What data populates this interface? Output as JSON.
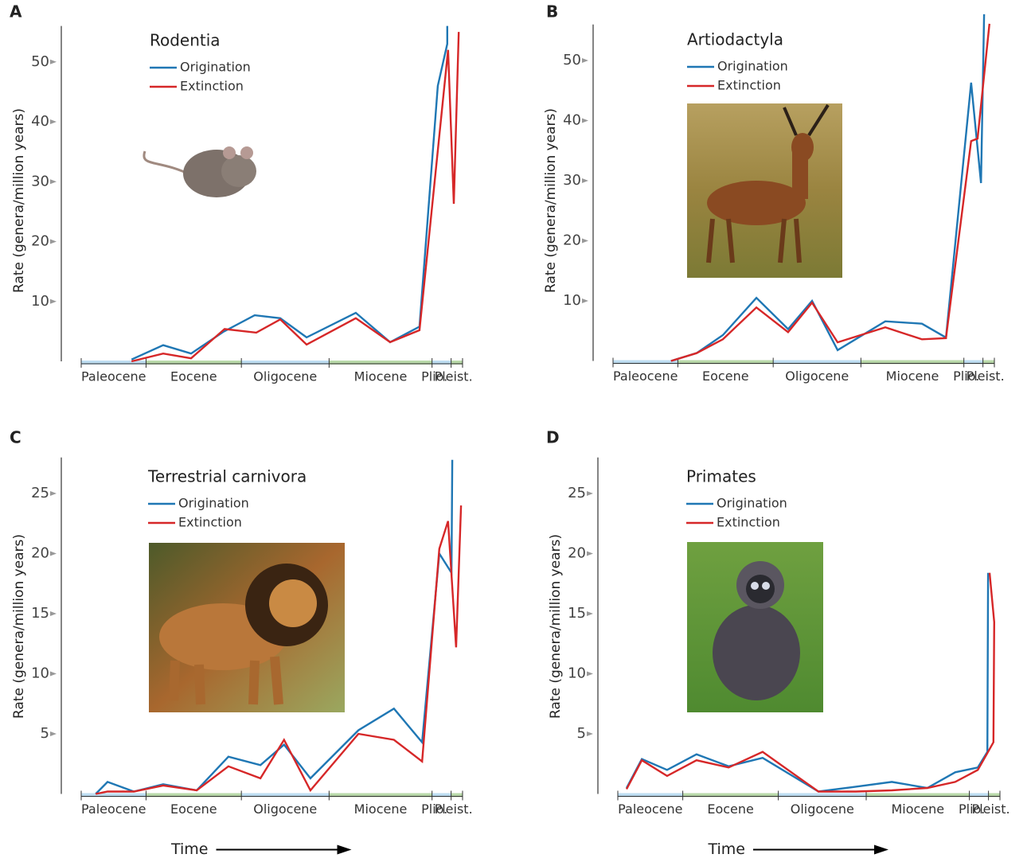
{
  "chart_data": [
    {
      "type": "line",
      "panel": "A",
      "title": "Rodentia",
      "ylabel": "Rate (genera/million years)",
      "xlim": [
        0,
        100
      ],
      "ylim": [
        0,
        56
      ],
      "yticks": [
        10,
        20,
        30,
        40,
        50
      ],
      "epochs": [
        {
          "name": "Paleocene",
          "start": 0,
          "end": 17
        },
        {
          "name": "Eocene",
          "start": 17,
          "end": 42
        },
        {
          "name": "Oligocene",
          "start": 42,
          "end": 65
        },
        {
          "name": "Miocene",
          "start": 65,
          "end": 92
        },
        {
          "name": "Plio.",
          "start": 92,
          "end": 97
        },
        {
          "name": "Pleist.",
          "start": 97,
          "end": 100
        }
      ],
      "series": [
        {
          "name": "Origination",
          "color": "#1f77b4",
          "x": [
            13.2,
            21.5,
            28.8,
            37.2,
            45.5,
            52.2,
            59.1,
            72.0,
            81.0,
            88.7,
            93.5,
            96.0,
            96.0
          ],
          "values": [
            0.3,
            2.7,
            1.3,
            4.9,
            7.7,
            7.2,
            4.0,
            8.1,
            3.2,
            5.8,
            46,
            53,
            56
          ]
        },
        {
          "name": "Extinction",
          "color": "#d62728",
          "x": [
            13.2,
            21.5,
            28.8,
            37.6,
            45.9,
            52.2,
            59.1,
            72.0,
            81.0,
            88.7,
            96.2,
            97.7,
            99.0
          ],
          "values": [
            0,
            1.3,
            0.5,
            5.4,
            4.8,
            7.0,
            2.8,
            7.2,
            3.2,
            5.2,
            52,
            26.3,
            55
          ]
        }
      ]
    },
    {
      "type": "line",
      "panel": "B",
      "title": "Artiodactyla",
      "ylabel": "Rate (genera/million years)",
      "xlim": [
        0,
        100
      ],
      "ylim": [
        0,
        56
      ],
      "yticks": [
        10,
        20,
        30,
        40,
        50
      ],
      "epochs": [
        {
          "name": "Paleocene",
          "start": 0,
          "end": 17
        },
        {
          "name": "Eocene",
          "start": 17,
          "end": 42
        },
        {
          "name": "Oligocene",
          "start": 42,
          "end": 65
        },
        {
          "name": "Miocene",
          "start": 65,
          "end": 92
        },
        {
          "name": "Plio.",
          "start": 92,
          "end": 97
        },
        {
          "name": "Pleist.",
          "start": 97,
          "end": 100
        }
      ],
      "series": [
        {
          "name": "Origination",
          "color": "#1f77b4",
          "x": [
            15.2,
            21.9,
            28.8,
            37.6,
            45.9,
            52.2,
            58.9,
            71.4,
            81.0,
            87.3,
            93.9,
            96.5,
            97.3
          ],
          "values": [
            0,
            1.3,
            4.3,
            10.5,
            5.3,
            10.0,
            1.8,
            6.6,
            6.2,
            3.9,
            46.3,
            29.6,
            57.7
          ]
        },
        {
          "name": "Extinction",
          "color": "#d62728",
          "x": [
            15.2,
            21.9,
            28.8,
            37.6,
            45.9,
            52.2,
            58.9,
            71.4,
            81.0,
            87.3,
            93.9,
            95.6,
            98.7
          ],
          "values": [
            0,
            1.3,
            3.6,
            8.9,
            4.8,
            9.7,
            3.1,
            5.6,
            3.6,
            3.8,
            36.6,
            37,
            56.1
          ]
        }
      ]
    },
    {
      "type": "line",
      "panel": "C",
      "title": "Terrestrial carnivora",
      "ylabel": "Rate (genera/million years)",
      "xlabel": "Time",
      "xlim": [
        0,
        100
      ],
      "ylim": [
        0,
        28
      ],
      "yticks": [
        5,
        10,
        15,
        20,
        25
      ],
      "epochs": [
        {
          "name": "Paleocene",
          "start": 0,
          "end": 17
        },
        {
          "name": "Eocene",
          "start": 17,
          "end": 42
        },
        {
          "name": "Oligocene",
          "start": 42,
          "end": 65
        },
        {
          "name": "Miocene",
          "start": 65,
          "end": 92
        },
        {
          "name": "Plio.",
          "start": 92,
          "end": 97
        },
        {
          "name": "Pleist.",
          "start": 97,
          "end": 100
        }
      ],
      "series": [
        {
          "name": "Origination",
          "color": "#1f77b4",
          "x": [
            3.8,
            6.9,
            13.8,
            21.5,
            30.3,
            38.6,
            47.0,
            53.2,
            60.1,
            72.7,
            82.0,
            89.4,
            93.9,
            97.1,
            97.3
          ],
          "values": [
            0,
            1,
            0.2,
            0.8,
            0.3,
            3.1,
            2.4,
            4.1,
            1.3,
            5.3,
            7.1,
            4.3,
            20,
            18.4,
            27.8
          ]
        },
        {
          "name": "Extinction",
          "color": "#d62728",
          "x": [
            3.8,
            6.9,
            13.8,
            21.5,
            30.3,
            38.6,
            47.0,
            53.2,
            60.1,
            72.7,
            82.0,
            89.4,
            93.9,
            96.2,
            98.3,
            99.6
          ],
          "values": [
            0,
            0.2,
            0.2,
            0.7,
            0.3,
            2.3,
            1.3,
            4.5,
            0.3,
            5,
            4.5,
            2.7,
            20.4,
            22.7,
            12.2,
            24
          ]
        }
      ]
    },
    {
      "type": "line",
      "panel": "D",
      "title": "Primates",
      "ylabel": "Rate (genera/million years)",
      "xlabel": "Time",
      "xlim": [
        0,
        100
      ],
      "ylim": [
        0,
        28
      ],
      "yticks": [
        5,
        10,
        15,
        20,
        25
      ],
      "epochs": [
        {
          "name": "Paleocene",
          "start": 0,
          "end": 17
        },
        {
          "name": "Eocene",
          "start": 17,
          "end": 42
        },
        {
          "name": "Oligocene",
          "start": 42,
          "end": 65
        },
        {
          "name": "Miocene",
          "start": 65,
          "end": 92
        },
        {
          "name": "Plio.",
          "start": 92,
          "end": 97
        },
        {
          "name": "Pleist.",
          "start": 97,
          "end": 100
        }
      ],
      "series": [
        {
          "name": "Origination",
          "color": "#1f77b4",
          "x": [
            2.3,
            6.3,
            12.9,
            20.6,
            29.0,
            37.9,
            52.5,
            62.3,
            71.7,
            81.0,
            88.3,
            94.2,
            96.7,
            96.9
          ],
          "values": [
            0.5,
            2.9,
            2,
            3.3,
            2.3,
            3,
            0.2,
            0.6,
            1,
            0.5,
            1.8,
            2.2,
            3.5,
            18.4
          ]
        },
        {
          "name": "Extinction",
          "color": "#d62728",
          "x": [
            2.3,
            6.3,
            12.9,
            20.6,
            29.0,
            37.9,
            52.5,
            62.3,
            71.7,
            81.0,
            88.3,
            94.2,
            96.7,
            98.3,
            98.5,
            97.3
          ],
          "values": [
            0.4,
            2.8,
            1.5,
            2.8,
            2.2,
            3.5,
            0.2,
            0.2,
            0.3,
            0.5,
            1,
            2,
            3.4,
            4.3,
            14.3,
            18.4
          ]
        }
      ]
    }
  ]
}
